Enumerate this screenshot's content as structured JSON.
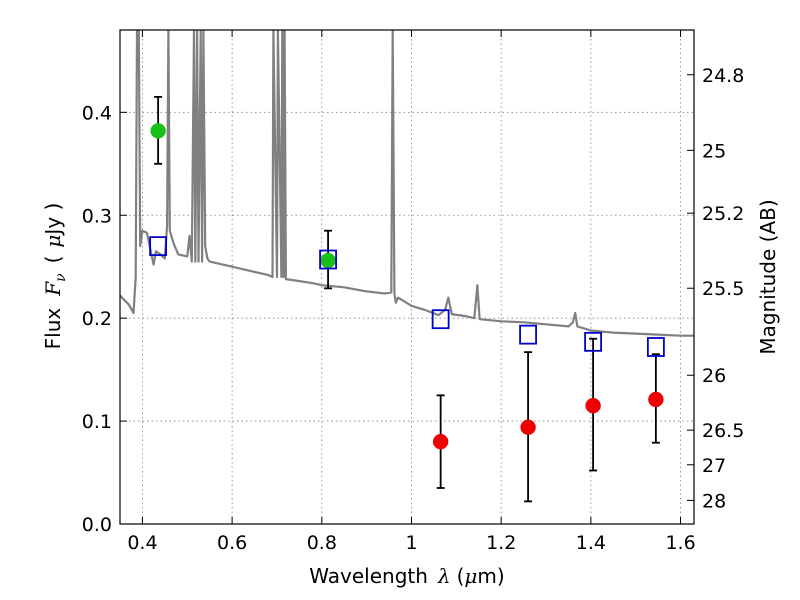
{
  "chart_data": {
    "type": "scatter",
    "xlabel_parts": {
      "prefix": "Wavelength",
      "symbol": "λ",
      "unit_open": "(",
      "unit_mu": "μ",
      "unit_rest": "m)"
    },
    "ylabel_parts": {
      "prefix": "Flux",
      "symbol": "F",
      "subscript": "ν",
      "unit_open": "(",
      "unit_mu": "μ",
      "unit_rest": "Jy )"
    },
    "y2label": "Magnitude (AB)",
    "xlim": [
      0.35,
      1.63
    ],
    "ylim": [
      0.0,
      0.48
    ],
    "grid": true,
    "x_ticks": [
      {
        "value": 0.4,
        "label": "0.4"
      },
      {
        "value": 0.6,
        "label": "0.6"
      },
      {
        "value": 0.8,
        "label": "0.8"
      },
      {
        "value": 1.0,
        "label": "1"
      },
      {
        "value": 1.2,
        "label": "1.2"
      },
      {
        "value": 1.4,
        "label": "1.4"
      },
      {
        "value": 1.6,
        "label": "1.6"
      }
    ],
    "y_ticks": [
      {
        "value": 0.0,
        "label": "0.0"
      },
      {
        "value": 0.1,
        "label": "0.1"
      },
      {
        "value": 0.2,
        "label": "0.2"
      },
      {
        "value": 0.3,
        "label": "0.3"
      },
      {
        "value": 0.4,
        "label": "0.4"
      }
    ],
    "y2_ticks": [
      {
        "mag": 24.8,
        "label": "24.8"
      },
      {
        "mag": 25.0,
        "label": "25"
      },
      {
        "mag": 25.2,
        "label": "25.2"
      },
      {
        "mag": 25.5,
        "label": "25.5"
      },
      {
        "mag": 26.0,
        "label": "26"
      },
      {
        "mag": 26.5,
        "label": "26.5"
      },
      {
        "mag": 27.0,
        "label": "27"
      },
      {
        "mag": 28.0,
        "label": "28"
      }
    ],
    "series": [
      {
        "marker": "circle",
        "color": "#18c018",
        "points": [
          {
            "x": 0.435,
            "y": 0.382,
            "ylo": 0.35,
            "yhi": 0.415
          },
          {
            "x": 0.814,
            "y": 0.256,
            "ylo": 0.229,
            "yhi": 0.285
          }
        ]
      },
      {
        "marker": "circle",
        "color": "#ee0000",
        "points": [
          {
            "x": 1.065,
            "y": 0.08,
            "ylo": 0.035,
            "yhi": 0.125
          },
          {
            "x": 1.26,
            "y": 0.094,
            "ylo": 0.022,
            "yhi": 0.167
          },
          {
            "x": 1.405,
            "y": 0.115,
            "ylo": 0.052,
            "yhi": 0.18
          },
          {
            "x": 1.545,
            "y": 0.121,
            "ylo": 0.079,
            "yhi": 0.165
          }
        ]
      },
      {
        "marker": "square-open",
        "color": "#0000cc",
        "points": [
          {
            "x": 0.435,
            "y": 0.27
          },
          {
            "x": 0.814,
            "y": 0.257
          },
          {
            "x": 1.065,
            "y": 0.199
          },
          {
            "x": 1.26,
            "y": 0.184
          },
          {
            "x": 1.405,
            "y": 0.177
          },
          {
            "x": 1.545,
            "y": 0.172
          }
        ]
      }
    ],
    "spectrum": {
      "color": "#808080",
      "points": [
        [
          0.35,
          0.222
        ],
        [
          0.37,
          0.213
        ],
        [
          0.38,
          0.205
        ],
        [
          0.385,
          0.24
        ],
        [
          0.388,
          0.48
        ],
        [
          0.392,
          0.48
        ],
        [
          0.395,
          0.27
        ],
        [
          0.4,
          0.285
        ],
        [
          0.41,
          0.283
        ],
        [
          0.42,
          0.262
        ],
        [
          0.425,
          0.252
        ],
        [
          0.43,
          0.265
        ],
        [
          0.44,
          0.262
        ],
        [
          0.45,
          0.258
        ],
        [
          0.455,
          0.29
        ],
        [
          0.458,
          0.48
        ],
        [
          0.461,
          0.285
        ],
        [
          0.47,
          0.272
        ],
        [
          0.48,
          0.262
        ],
        [
          0.5,
          0.26
        ],
        [
          0.505,
          0.28
        ],
        [
          0.51,
          0.255
        ],
        [
          0.515,
          0.48
        ],
        [
          0.518,
          0.255
        ],
        [
          0.522,
          0.48
        ],
        [
          0.525,
          0.255
        ],
        [
          0.53,
          0.48
        ],
        [
          0.533,
          0.255
        ],
        [
          0.536,
          0.48
        ],
        [
          0.54,
          0.27
        ],
        [
          0.545,
          0.258
        ],
        [
          0.55,
          0.255
        ],
        [
          0.6,
          0.25
        ],
        [
          0.65,
          0.245
        ],
        [
          0.68,
          0.242
        ],
        [
          0.69,
          0.24
        ],
        [
          0.692,
          0.48
        ],
        [
          0.7,
          0.24
        ],
        [
          0.702,
          0.48
        ],
        [
          0.71,
          0.24
        ],
        [
          0.712,
          0.48
        ],
        [
          0.715,
          0.24
        ],
        [
          0.717,
          0.48
        ],
        [
          0.72,
          0.238
        ],
        [
          0.75,
          0.236
        ],
        [
          0.78,
          0.234
        ],
        [
          0.8,
          0.232
        ],
        [
          0.85,
          0.23
        ],
        [
          0.9,
          0.226
        ],
        [
          0.94,
          0.224
        ],
        [
          0.955,
          0.225
        ],
        [
          0.958,
          0.48
        ],
        [
          0.962,
          0.224
        ],
        [
          0.965,
          0.215
        ],
        [
          0.97,
          0.22
        ],
        [
          1.0,
          0.212
        ],
        [
          1.03,
          0.208
        ],
        [
          1.06,
          0.203
        ],
        [
          1.075,
          0.208
        ],
        [
          1.082,
          0.22
        ],
        [
          1.09,
          0.204
        ],
        [
          1.12,
          0.202
        ],
        [
          1.14,
          0.2
        ],
        [
          1.147,
          0.232
        ],
        [
          1.152,
          0.199
        ],
        [
          1.2,
          0.197
        ],
        [
          1.25,
          0.196
        ],
        [
          1.3,
          0.194
        ],
        [
          1.35,
          0.192
        ],
        [
          1.36,
          0.196
        ],
        [
          1.365,
          0.205
        ],
        [
          1.37,
          0.192
        ],
        [
          1.4,
          0.188
        ],
        [
          1.45,
          0.186
        ],
        [
          1.5,
          0.185
        ],
        [
          1.55,
          0.184
        ],
        [
          1.6,
          0.183
        ],
        [
          1.63,
          0.183
        ]
      ]
    }
  }
}
